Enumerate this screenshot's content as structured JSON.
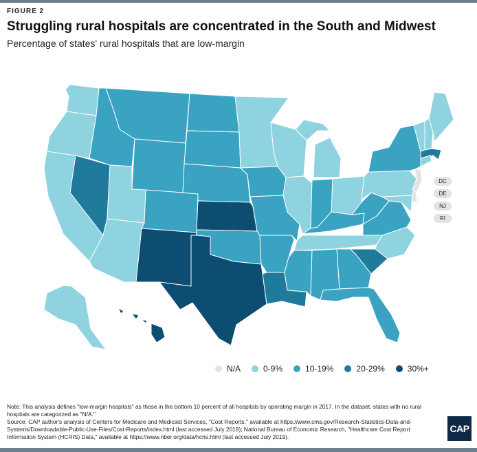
{
  "header": {
    "figure_label": "FIGURE 2",
    "title": "Struggling rural hospitals are concentrated in the South and Midwest",
    "subtitle": "Percentage of states' rural hospitals that are low-margin"
  },
  "palette": {
    "na": "#e3e3e3",
    "0-9": "#8ed3df",
    "10-19": "#3aa3c1",
    "20-29": "#1f7a9c",
    "30+": "#0c4d71"
  },
  "legend": [
    {
      "key": "na",
      "label": "N/A"
    },
    {
      "key": "0-9",
      "label": "0-9%"
    },
    {
      "key": "10-19",
      "label": "10-19%"
    },
    {
      "key": "20-29",
      "label": "20-29%"
    },
    {
      "key": "30+",
      "label": "30%+"
    }
  ],
  "small_states": [
    {
      "abbr": "DC",
      "label": "DC",
      "category": "na"
    },
    {
      "abbr": "DE",
      "label": "DE",
      "category": "na"
    },
    {
      "abbr": "NJ",
      "label": "NJ",
      "category": "na"
    },
    {
      "abbr": "RI",
      "label": "RI",
      "category": "na"
    }
  ],
  "states": {
    "WA": "0-9",
    "OR": "0-9",
    "CA": "0-9",
    "NV": "20-29",
    "ID": "10-19",
    "MT": "10-19",
    "WY": "10-19",
    "UT": "0-9",
    "AZ": "0-9",
    "CO": "10-19",
    "NM": "30+",
    "ND": "10-19",
    "SD": "10-19",
    "NE": "10-19",
    "KS": "30+",
    "OK": "10-19",
    "TX": "30+",
    "MN": "0-9",
    "IA": "10-19",
    "MO": "10-19",
    "AR": "10-19",
    "LA": "20-29",
    "WI": "0-9",
    "IL": "0-9",
    "MI": "0-9",
    "IN": "10-19",
    "OH": "0-9",
    "KY": "10-19",
    "TN": "0-9",
    "MS": "10-19",
    "AL": "10-19",
    "GA": "10-19",
    "FL": "10-19",
    "SC": "20-29",
    "NC": "0-9",
    "VA": "10-19",
    "WV": "10-19",
    "MD": "0-9",
    "PA": "0-9",
    "NY": "10-19",
    "VT": "0-9",
    "NH": "0-9",
    "ME": "0-9",
    "MA": "20-29",
    "CT": "0-9",
    "NJ": "na",
    "DE": "na",
    "AK": "0-9",
    "HI": "30+"
  },
  "notes": {
    "note": "Note: This analysis defines \"low-margin hospitals\" as those in the bottom 10 percent of all hospitals by operating margin in 2017. In the dataset, states with no rural hospitals are categorized as \"N/A.\"",
    "source": "Source: CAP author's analysis of Centers for Medicare and Medicaid Services, \"Cost Reports,\" available at https://www.cms.gov/Research-Statistics-Data-and-Systems/Downloadable-Public-Use-Files/Cost-Reports/index.html (last accessed July 2019); National Bureau of Economic Research, \"Healthcare Cost Report Information System (HCRIS) Data,\" available at https://www.nber.org/data/hcris.html (last accessed July 2019)."
  },
  "logo": {
    "text": "CAP"
  }
}
